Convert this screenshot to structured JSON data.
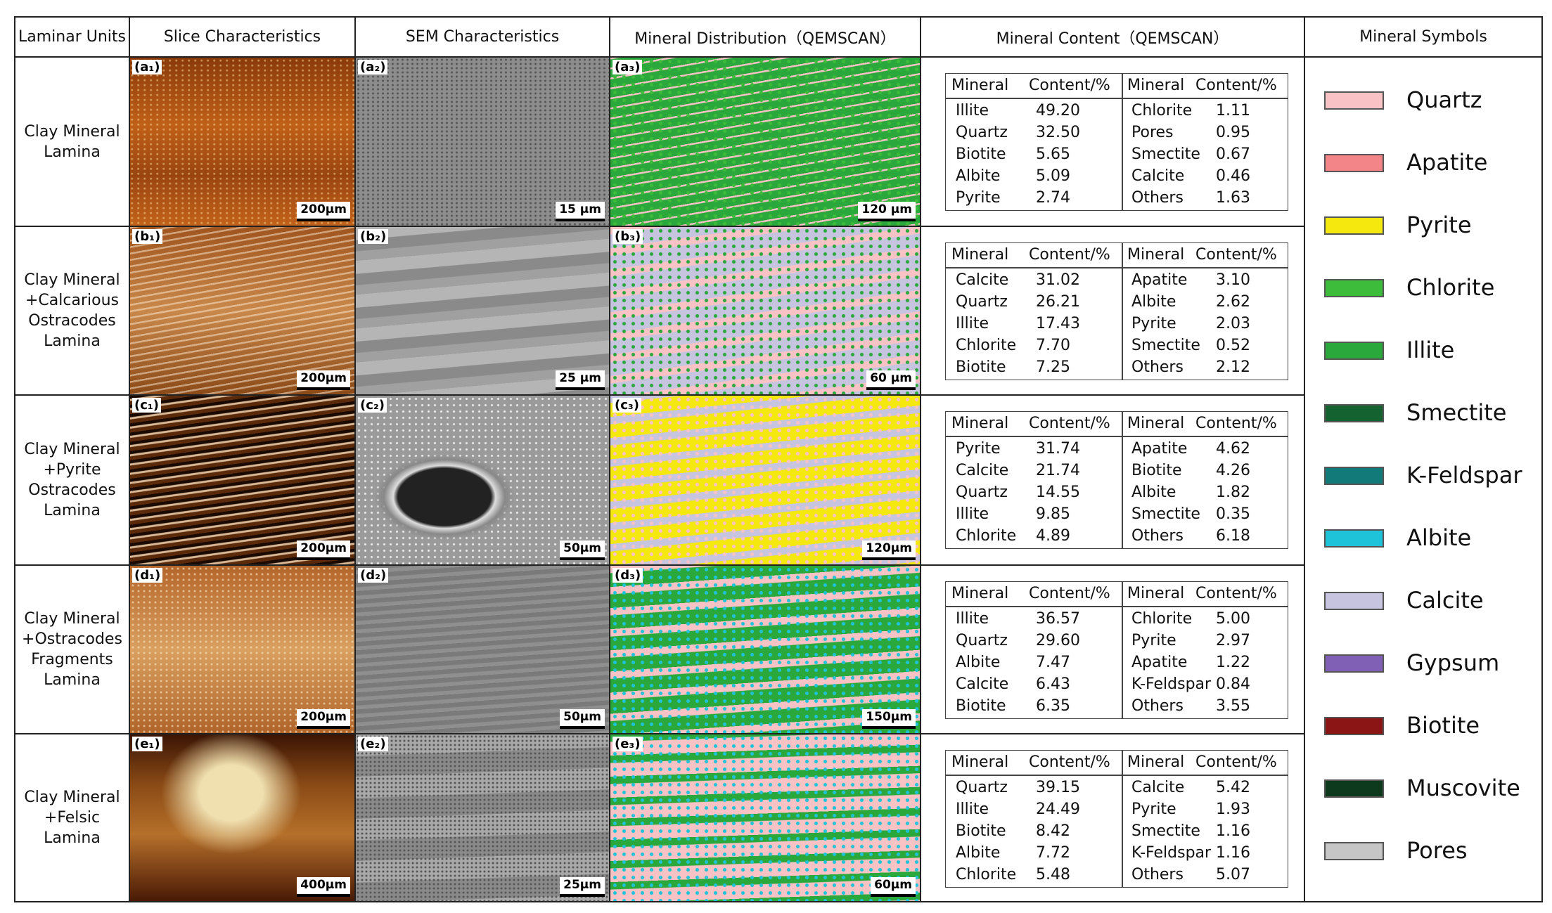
{
  "header": [
    "Laminar Units",
    "Slice Characteristics",
    "SEM Characteristics",
    "Mineral Distribution（QEMSCAN）",
    "Mineral Content（QEMSCAN）",
    "Mineral Symbols"
  ],
  "content_header": {
    "mineral": "Mineral",
    "content": "Content/%"
  },
  "rows": [
    {
      "unit": [
        "Clay Mineral",
        "Lamina"
      ],
      "panels": [
        {
          "label": "(a₁)",
          "scale": "200μm"
        },
        {
          "label": "(a₂)",
          "scale": "15 μm"
        },
        {
          "label": "(a₃)",
          "scale": "120 μm"
        }
      ],
      "left": [
        [
          "Illite",
          "49.20"
        ],
        [
          "Quartz",
          "32.50"
        ],
        [
          "Biotite",
          "5.65"
        ],
        [
          "Albite",
          "5.09"
        ],
        [
          "Pyrite",
          "2.74"
        ]
      ],
      "right": [
        [
          "Chlorite",
          "1.11"
        ],
        [
          "Pores",
          "0.95"
        ],
        [
          "Smectite",
          "0.67"
        ],
        [
          "Calcite",
          "0.46"
        ],
        [
          "Others",
          "1.63"
        ]
      ]
    },
    {
      "unit": [
        "Clay Mineral",
        "+Calcarious",
        "Ostracodes",
        "Lamina"
      ],
      "panels": [
        {
          "label": "(b₁)",
          "scale": "200μm"
        },
        {
          "label": "(b₂)",
          "scale": "25 μm"
        },
        {
          "label": "(b₃)",
          "scale": "60 μm"
        }
      ],
      "left": [
        [
          "Calcite",
          "31.02"
        ],
        [
          "Quartz",
          "26.21"
        ],
        [
          "Illite",
          "17.43"
        ],
        [
          "Chlorite",
          "7.70"
        ],
        [
          "Biotite",
          "7.25"
        ]
      ],
      "right": [
        [
          "Apatite",
          "3.10"
        ],
        [
          "Albite",
          "2.62"
        ],
        [
          "Pyrite",
          "2.03"
        ],
        [
          "Smectite",
          "0.52"
        ],
        [
          "Others",
          "2.12"
        ]
      ]
    },
    {
      "unit": [
        "Clay Mineral",
        "+Pyrite",
        "Ostracodes",
        "Lamina"
      ],
      "panels": [
        {
          "label": "(c₁)",
          "scale": "200μm"
        },
        {
          "label": "(c₂)",
          "scale": "50μm"
        },
        {
          "label": "(c₃)",
          "scale": "120μm"
        }
      ],
      "left": [
        [
          "Pyrite",
          "31.74"
        ],
        [
          "Calcite",
          "21.74"
        ],
        [
          "Quartz",
          "14.55"
        ],
        [
          "Illite",
          "9.85"
        ],
        [
          "Chlorite",
          "4.89"
        ]
      ],
      "right": [
        [
          "Apatite",
          "4.62"
        ],
        [
          "Biotite",
          "4.26"
        ],
        [
          "Albite",
          "1.82"
        ],
        [
          "Smectite",
          "0.35"
        ],
        [
          "Others",
          "6.18"
        ]
      ]
    },
    {
      "unit": [
        "Clay Mineral",
        "+Ostracodes",
        "Fragments",
        "Lamina"
      ],
      "panels": [
        {
          "label": "(d₁)",
          "scale": "200μm"
        },
        {
          "label": "(d₂)",
          "scale": "50μm"
        },
        {
          "label": "(d₃)",
          "scale": "150μm"
        }
      ],
      "left": [
        [
          "Illite",
          "36.57"
        ],
        [
          "Quartz",
          "29.60"
        ],
        [
          "Albite",
          "7.47"
        ],
        [
          "Calcite",
          "6.43"
        ],
        [
          "Biotite",
          "6.35"
        ]
      ],
      "right": [
        [
          "Chlorite",
          "5.00"
        ],
        [
          "Pyrite",
          "2.97"
        ],
        [
          "Apatite",
          "1.22"
        ],
        [
          "K-Feldspar",
          "0.84"
        ],
        [
          "Others",
          "3.55"
        ]
      ]
    },
    {
      "unit": [
        "Clay Mineral",
        "+Felsic",
        "Lamina"
      ],
      "panels": [
        {
          "label": "(e₁)",
          "scale": "400μm"
        },
        {
          "label": "(e₂)",
          "scale": "25μm"
        },
        {
          "label": "(e₃)",
          "scale": "60μm"
        }
      ],
      "left": [
        [
          "Quartz",
          "39.15"
        ],
        [
          "Illite",
          "24.49"
        ],
        [
          "Biotite",
          "8.42"
        ],
        [
          "Albite",
          "7.72"
        ],
        [
          "Chlorite",
          "5.48"
        ]
      ],
      "right": [
        [
          "Calcite",
          "5.42"
        ],
        [
          "Pyrite",
          "1.93"
        ],
        [
          "Smectite",
          "1.16"
        ],
        [
          "K-Feldspar",
          "1.16"
        ],
        [
          "Others",
          "5.07"
        ]
      ]
    }
  ],
  "legend": [
    {
      "name": "Quartz",
      "color": "#f9c3c6"
    },
    {
      "name": "Apatite",
      "color": "#f38488"
    },
    {
      "name": "Pyrite",
      "color": "#f4e80f"
    },
    {
      "name": "Chlorite",
      "color": "#3dbb3b"
    },
    {
      "name": "Illite",
      "color": "#2aa83c"
    },
    {
      "name": "Smectite",
      "color": "#14622f"
    },
    {
      "name": "K-Feldspar",
      "color": "#127b79"
    },
    {
      "name": "Albite",
      "color": "#1ec3d9"
    },
    {
      "name": "Calcite",
      "color": "#c7c4e0"
    },
    {
      "name": "Gypsum",
      "color": "#7f60b4"
    },
    {
      "name": "Biotite",
      "color": "#8b1414"
    },
    {
      "name": "Muscovite",
      "color": "#0d3a1c"
    },
    {
      "name": "Pores",
      "color": "#c6c6c6"
    }
  ]
}
